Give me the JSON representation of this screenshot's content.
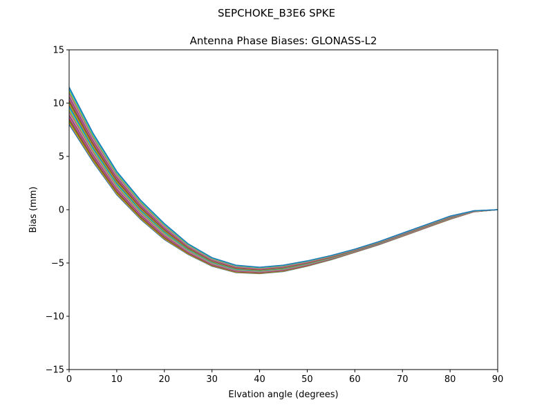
{
  "chart_data": {
    "type": "line",
    "suptitle": "SEPCHOKE_B3E6   SPKE",
    "title": "Antenna Phase Biases: GLONASS-L2",
    "xlabel": "Elvation angle (degrees)",
    "ylabel": "Bias (mm)",
    "xlim": [
      0,
      90
    ],
    "ylim": [
      -15,
      15
    ],
    "xticks": [
      0,
      10,
      20,
      30,
      40,
      50,
      60,
      70,
      80,
      90
    ],
    "yticks": [
      -15,
      -10,
      -5,
      0,
      5,
      10,
      15
    ],
    "ytick_labels": [
      "−15",
      "−10",
      "−5",
      "0",
      "5",
      "10",
      "15"
    ],
    "grid": false,
    "legend": "none",
    "colors": [
      "#1f77b4",
      "#ff7f0e",
      "#2ca02c",
      "#d62728",
      "#9467bd",
      "#8c564b",
      "#e377c2",
      "#7f7f7f",
      "#bcbd22",
      "#17becf"
    ],
    "x": [
      0,
      5,
      10,
      15,
      20,
      25,
      30,
      35,
      40,
      45,
      50,
      55,
      60,
      65,
      70,
      75,
      80,
      85,
      90
    ],
    "series": [
      {
        "values": [
          8.0,
          4.5,
          1.4,
          -0.9,
          -2.8,
          -4.2,
          -5.3,
          -5.9,
          -6.0,
          -5.8,
          -5.3,
          -4.7,
          -4.0,
          -3.3,
          -2.5,
          -1.7,
          -0.9,
          -0.2,
          0
        ]
      },
      {
        "values": [
          8.7,
          5.04,
          1.84,
          -0.54,
          -2.5,
          -4.0,
          -5.14,
          -5.76,
          -5.88,
          -5.68,
          -5.2,
          -4.62,
          -3.94,
          -3.24,
          -2.44,
          -1.64,
          -0.84,
          -0.18,
          0
        ]
      },
      {
        "values": [
          9.4,
          5.58,
          2.28,
          -0.18,
          -2.2,
          -3.8,
          -4.98,
          -5.62,
          -5.76,
          -5.56,
          -5.1,
          -4.54,
          -3.88,
          -3.18,
          -2.38,
          -1.58,
          -0.78,
          -0.16,
          0
        ]
      },
      {
        "values": [
          10.1,
          6.12,
          2.72,
          0.18,
          -1.9,
          -3.6,
          -4.82,
          -5.48,
          -5.64,
          -5.44,
          -5.0,
          -4.46,
          -3.82,
          -3.12,
          -2.32,
          -1.52,
          -0.72,
          -0.14,
          0
        ]
      },
      {
        "values": [
          10.8,
          6.66,
          3.16,
          0.54,
          -1.6,
          -3.4,
          -4.66,
          -5.34,
          -5.52,
          -5.32,
          -4.9,
          -4.38,
          -3.76,
          -3.06,
          -2.26,
          -1.46,
          -0.66,
          -0.12,
          0
        ]
      },
      {
        "values": [
          11.5,
          7.2,
          3.6,
          0.9,
          -1.3,
          -3.2,
          -4.5,
          -5.2,
          -5.4,
          -5.2,
          -4.8,
          -4.3,
          -3.7,
          -3.0,
          -2.2,
          -1.4,
          -0.6,
          -0.1,
          0
        ]
      }
    ]
  }
}
